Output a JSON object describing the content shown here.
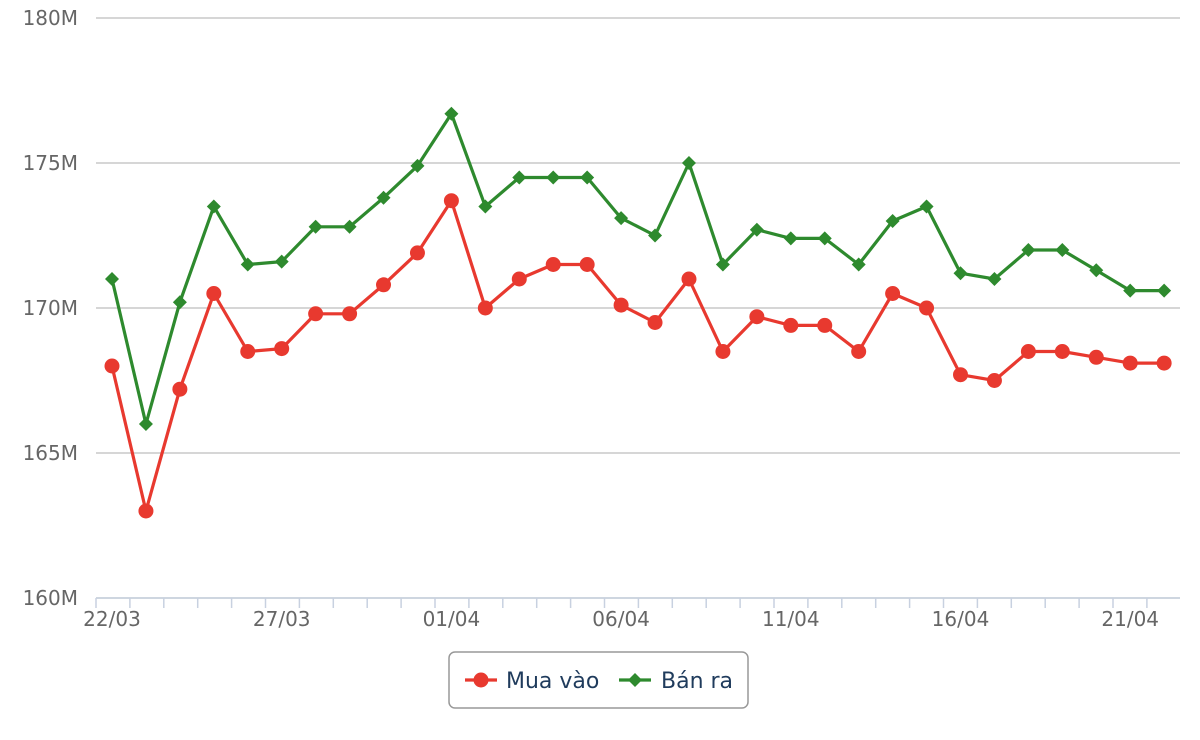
{
  "chart_data": {
    "type": "line",
    "title": "",
    "xlabel": "",
    "ylabel": "",
    "ylim": [
      160,
      180
    ],
    "y_ticks": [
      {
        "value": 160,
        "label": "160M"
      },
      {
        "value": 165,
        "label": "165M"
      },
      {
        "value": 170,
        "label": "170M"
      },
      {
        "value": 175,
        "label": "175M"
      },
      {
        "value": 180,
        "label": "180M"
      }
    ],
    "x": [
      "22/03",
      "23/03",
      "24/03",
      "25/03",
      "26/03",
      "27/03",
      "28/03",
      "29/03",
      "30/03",
      "31/03",
      "01/04",
      "02/04",
      "03/04",
      "04/04",
      "05/04",
      "06/04",
      "07/04",
      "08/04",
      "09/04",
      "10/04",
      "11/04",
      "12/04",
      "13/04",
      "14/04",
      "15/04",
      "16/04",
      "17/04",
      "18/04",
      "19/04",
      "20/04",
      "21/04",
      "22/04"
    ],
    "x_tick_labels": [
      "22/03",
      "27/03",
      "01/04",
      "06/04",
      "11/04",
      "16/04",
      "21/04"
    ],
    "grid": true,
    "legend_position": "bottom-center",
    "series": [
      {
        "name": "Mua vào",
        "color": "#e8392f",
        "marker": "circle",
        "values": [
          168.0,
          163.0,
          167.2,
          170.5,
          168.5,
          168.6,
          169.8,
          169.8,
          170.8,
          171.9,
          173.7,
          170.0,
          171.0,
          171.5,
          171.5,
          170.1,
          169.5,
          171.0,
          168.5,
          169.7,
          169.4,
          169.4,
          168.5,
          170.5,
          170.0,
          167.7,
          167.5,
          168.5,
          168.5,
          168.3,
          168.1,
          168.1
        ]
      },
      {
        "name": "Bán ra",
        "color": "#2e8a2e",
        "marker": "diamond",
        "values": [
          171.0,
          166.0,
          170.2,
          173.5,
          171.5,
          171.6,
          172.8,
          172.8,
          173.8,
          174.9,
          176.7,
          173.5,
          174.5,
          174.5,
          174.5,
          173.1,
          172.5,
          175.0,
          171.5,
          172.7,
          172.4,
          172.4,
          171.5,
          173.0,
          173.5,
          171.2,
          171.0,
          172.0,
          172.0,
          171.3,
          170.6,
          170.6
        ]
      }
    ]
  }
}
